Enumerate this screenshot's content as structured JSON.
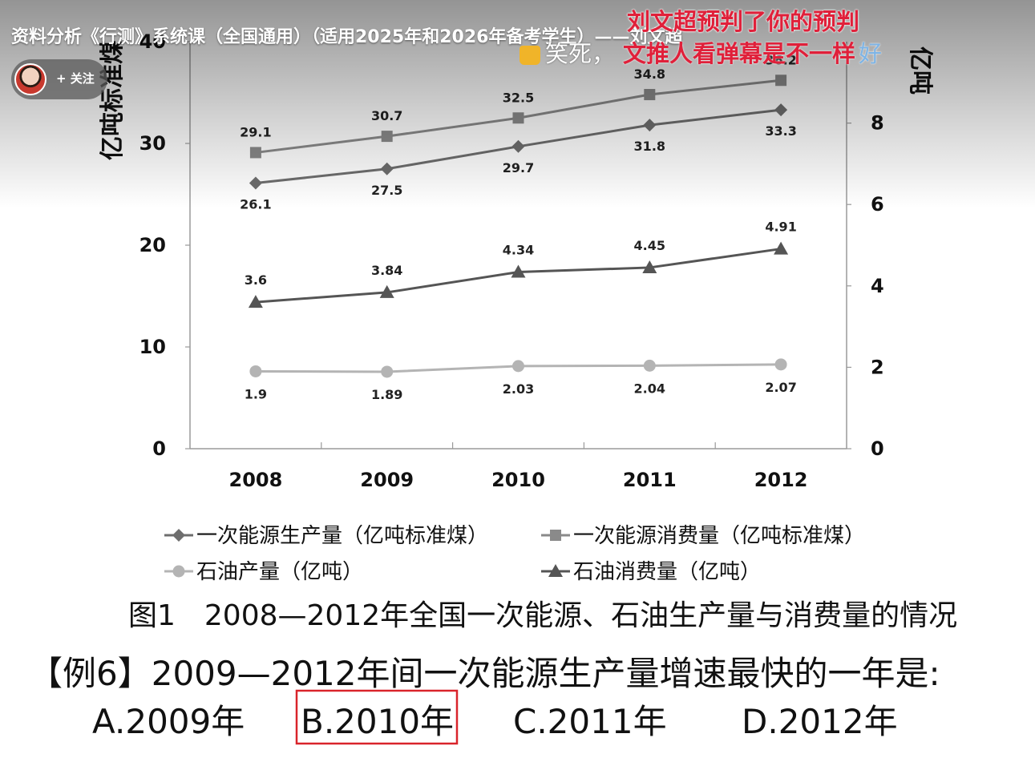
{
  "video": {
    "title": "资料分析《行测》系统课（全国通用）（适用2025年和2026年备考学生）——刘文超",
    "follow_label": "+ 关注"
  },
  "danmaku": {
    "line1": "刘文超预判了你的预判",
    "line2_white": "笑死，",
    "line2_red": "文推人看弹幕是不一样",
    "line2_blue": "好"
  },
  "chart_data": {
    "type": "line",
    "categories": [
      "2008",
      "2009",
      "2010",
      "2011",
      "2012"
    ],
    "left_axis": {
      "title": "亿吨标准煤",
      "range": [
        0,
        40
      ],
      "ticks": [
        "0",
        "10",
        "20",
        "30",
        "40"
      ]
    },
    "right_axis": {
      "title": "亿吨",
      "range": [
        0,
        10
      ],
      "ticks": [
        "0",
        "2",
        "4",
        "6",
        "8"
      ]
    },
    "series": [
      {
        "name": "一次能源生产量（亿吨标准煤）",
        "axis": "left",
        "marker": "diamond",
        "color": "#6e6e6e",
        "values": [
          26.1,
          27.5,
          29.7,
          31.8,
          33.3
        ],
        "labels": [
          "26.1",
          "27.5",
          "29.7",
          "31.8",
          "33.3"
        ]
      },
      {
        "name": "一次能源消费量（亿吨标准煤）",
        "axis": "left",
        "marker": "square",
        "color": "#8a8a8a",
        "values": [
          29.1,
          30.7,
          32.5,
          34.8,
          36.2
        ],
        "labels": [
          "29.1",
          "30.7",
          "32.5",
          "34.8",
          "36.2"
        ]
      },
      {
        "name": "石油产量（亿吨）",
        "axis": "right",
        "marker": "circle",
        "color": "#b4b4b4",
        "values": [
          1.9,
          1.89,
          2.03,
          2.04,
          2.07
        ],
        "labels": [
          "1.9",
          "1.89",
          "2.03",
          "2.04",
          "2.07"
        ]
      },
      {
        "name": "石油消费量（亿吨）",
        "axis": "right",
        "marker": "triangle",
        "color": "#555555",
        "values": [
          3.6,
          3.84,
          4.34,
          4.45,
          4.91
        ],
        "labels": [
          "3.6",
          "3.84",
          "4.34",
          "4.45",
          "4.91"
        ]
      }
    ],
    "legend_order": [
      0,
      1,
      2,
      3
    ],
    "legend_placement": "bottom",
    "caption": "图1　2008—2012年全国一次能源、石油生产量与消费量的情况",
    "grid": false
  },
  "question": {
    "text": "【例6】2009—2012年间一次能源生产量增速最快的一年是:",
    "options": [
      "A.2009年",
      "B.2010年",
      "C.2011年",
      "D.2012年"
    ],
    "highlighted_index": 1,
    "highlight_color": "#d9242b"
  }
}
